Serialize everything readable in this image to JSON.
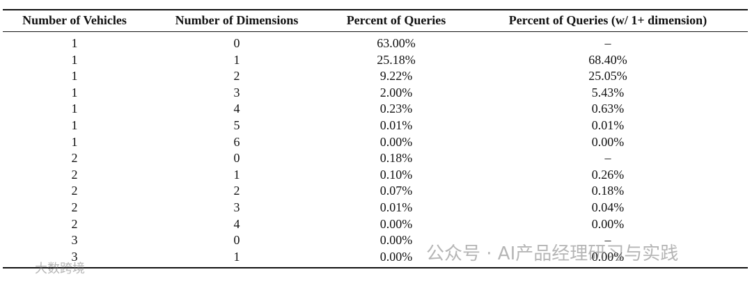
{
  "table": {
    "header": [
      "Number of Vehicles",
      "Number of Dimensions",
      "Percent of Queries",
      "Percent of Queries (w/ 1+ dimension)"
    ],
    "rows": [
      [
        "1",
        "0",
        "63.00%",
        "–"
      ],
      [
        "1",
        "1",
        "25.18%",
        "68.40%"
      ],
      [
        "1",
        "2",
        "9.22%",
        "25.05%"
      ],
      [
        "1",
        "3",
        "2.00%",
        "5.43%"
      ],
      [
        "1",
        "4",
        "0.23%",
        "0.63%"
      ],
      [
        "1",
        "5",
        "0.01%",
        "0.01%"
      ],
      [
        "1",
        "6",
        "0.00%",
        "0.00%"
      ],
      [
        "2",
        "0",
        "0.18%",
        "–"
      ],
      [
        "2",
        "1",
        "0.10%",
        "0.26%"
      ],
      [
        "2",
        "2",
        "0.07%",
        "0.18%"
      ],
      [
        "2",
        "3",
        "0.01%",
        "0.04%"
      ],
      [
        "2",
        "4",
        "0.00%",
        "0.00%"
      ],
      [
        "3",
        "0",
        "0.00%",
        "–"
      ],
      [
        "3",
        "1",
        "0.00%",
        "0.00%"
      ]
    ]
  },
  "watermarks": [
    "公众号 · AI产品经理研习与实践",
    "大数跨境"
  ]
}
